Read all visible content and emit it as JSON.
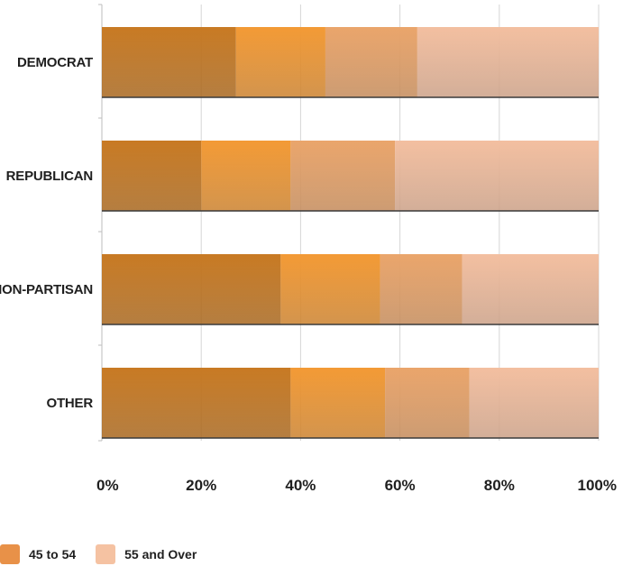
{
  "chart_data": {
    "type": "bar",
    "orientation": "horizontal",
    "stacked": "percent",
    "categories": [
      "DEMOCRAT",
      "REPUBLICAN",
      "NON-PARTISAN",
      "OTHER"
    ],
    "series": [
      {
        "values": [
          27,
          20,
          36,
          38
        ],
        "color": "#c87a23"
      },
      {
        "values": [
          18,
          18,
          20,
          19
        ],
        "color": "#f39a35"
      },
      {
        "name": "45 to 54",
        "values": [
          18.5,
          21,
          16.5,
          17
        ],
        "color": "#eaa56b"
      },
      {
        "name": "55 and Over",
        "values": [
          36.5,
          41,
          27.5,
          26
        ],
        "color": "#f3bfa0"
      }
    ],
    "xlim": [
      0,
      100
    ],
    "x_ticks": [
      "0%",
      "20%",
      "40%",
      "60%",
      "80%",
      "100%"
    ],
    "grid": true,
    "legend": "bottom-left"
  },
  "legend": {
    "items": [
      {
        "label": "45 to 54",
        "color": "#e89148"
      },
      {
        "label": "55 and Over",
        "color": "#f5c2a2"
      }
    ]
  }
}
